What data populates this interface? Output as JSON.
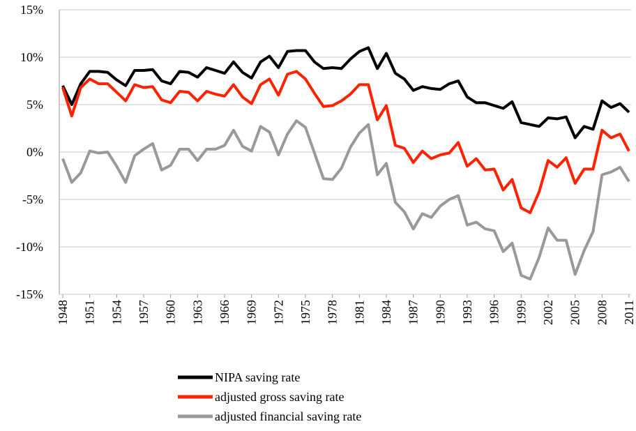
{
  "chart_data": {
    "type": "line",
    "x": [
      1948,
      1949,
      1950,
      1951,
      1952,
      1953,
      1954,
      1955,
      1956,
      1957,
      1958,
      1959,
      1960,
      1961,
      1962,
      1963,
      1964,
      1965,
      1966,
      1967,
      1968,
      1969,
      1970,
      1971,
      1972,
      1973,
      1974,
      1975,
      1976,
      1977,
      1978,
      1979,
      1980,
      1981,
      1982,
      1983,
      1984,
      1985,
      1986,
      1987,
      1988,
      1989,
      1990,
      1991,
      1992,
      1993,
      1994,
      1995,
      1996,
      1997,
      1998,
      1999,
      2000,
      2001,
      2002,
      2003,
      2004,
      2005,
      2006,
      2007,
      2008,
      2009,
      2010,
      2011
    ],
    "xlim": [
      1948,
      2011
    ],
    "xticks": [
      1948,
      1951,
      1954,
      1957,
      1960,
      1963,
      1966,
      1969,
      1972,
      1975,
      1978,
      1981,
      1984,
      1987,
      1990,
      1993,
      1996,
      1999,
      2002,
      2005,
      2008,
      2011
    ],
    "ylim": [
      -15,
      15
    ],
    "yticks": [
      {
        "value": -15,
        "label": "-15%"
      },
      {
        "value": -10,
        "label": "-10%"
      },
      {
        "value": -5,
        "label": "-5%"
      },
      {
        "value": 0,
        "label": "0%"
      },
      {
        "value": 5,
        "label": "5%"
      },
      {
        "value": 10,
        "label": "10%"
      },
      {
        "value": 15,
        "label": "15%"
      }
    ],
    "grid": true,
    "legend": "bottom",
    "series": [
      {
        "name": "NIPA saving rate",
        "color": "#000000",
        "values": [
          7.0,
          5.0,
          7.2,
          8.5,
          8.5,
          8.4,
          7.6,
          7.0,
          8.6,
          8.6,
          8.7,
          7.5,
          7.2,
          8.5,
          8.4,
          7.9,
          8.9,
          8.6,
          8.3,
          9.5,
          8.4,
          7.8,
          9.5,
          10.1,
          8.9,
          10.6,
          10.7,
          10.7,
          9.5,
          8.8,
          8.9,
          8.8,
          9.8,
          10.6,
          11.0,
          8.8,
          10.4,
          8.3,
          7.7,
          6.5,
          6.9,
          6.7,
          6.6,
          7.2,
          7.5,
          5.8,
          5.2,
          5.2,
          4.9,
          4.6,
          5.3,
          3.1,
          2.9,
          2.7,
          3.6,
          3.5,
          3.7,
          1.5,
          2.7,
          2.4,
          5.4,
          4.7,
          5.1,
          4.2
        ]
      },
      {
        "name": "adjusted gross saving rate",
        "color": "#ff2200",
        "values": [
          6.8,
          3.8,
          6.8,
          7.7,
          7.2,
          7.2,
          6.3,
          5.4,
          7.1,
          6.8,
          6.9,
          5.5,
          5.2,
          6.4,
          6.3,
          5.4,
          6.4,
          6.1,
          5.9,
          7.1,
          5.8,
          5.1,
          7.1,
          7.7,
          6.0,
          8.2,
          8.5,
          7.7,
          6.2,
          4.8,
          4.9,
          5.4,
          6.1,
          7.1,
          7.1,
          3.4,
          4.9,
          0.7,
          0.4,
          -1.1,
          0.1,
          -0.7,
          -0.3,
          -0.1,
          1.0,
          -1.5,
          -0.7,
          -1.9,
          -1.8,
          -4.0,
          -2.9,
          -5.9,
          -6.4,
          -4.2,
          -0.9,
          -1.6,
          -0.6,
          -3.3,
          -1.8,
          -1.8,
          2.3,
          1.5,
          1.9,
          0.1
        ]
      },
      {
        "name": "adjusted financial saving rate",
        "color": "#999999",
        "values": [
          -0.7,
          -3.2,
          -2.2,
          0.1,
          -0.1,
          0.0,
          -1.5,
          -3.2,
          -0.4,
          0.3,
          0.9,
          -1.9,
          -1.4,
          0.3,
          0.3,
          -0.9,
          0.3,
          0.3,
          0.7,
          2.3,
          0.6,
          0.1,
          2.7,
          2.1,
          -0.3,
          1.9,
          3.3,
          2.6,
          -0.1,
          -2.8,
          -2.9,
          -1.7,
          0.5,
          2.0,
          2.9,
          -2.4,
          -1.2,
          -5.3,
          -6.3,
          -8.1,
          -6.5,
          -6.9,
          -5.7,
          -5.0,
          -4.6,
          -7.7,
          -7.4,
          -8.1,
          -8.3,
          -10.5,
          -9.6,
          -13.0,
          -13.4,
          -11.1,
          -8.0,
          -9.3,
          -9.3,
          -12.9,
          -10.4,
          -8.4,
          -2.4,
          -2.1,
          -1.6,
          -3.1
        ]
      }
    ]
  }
}
